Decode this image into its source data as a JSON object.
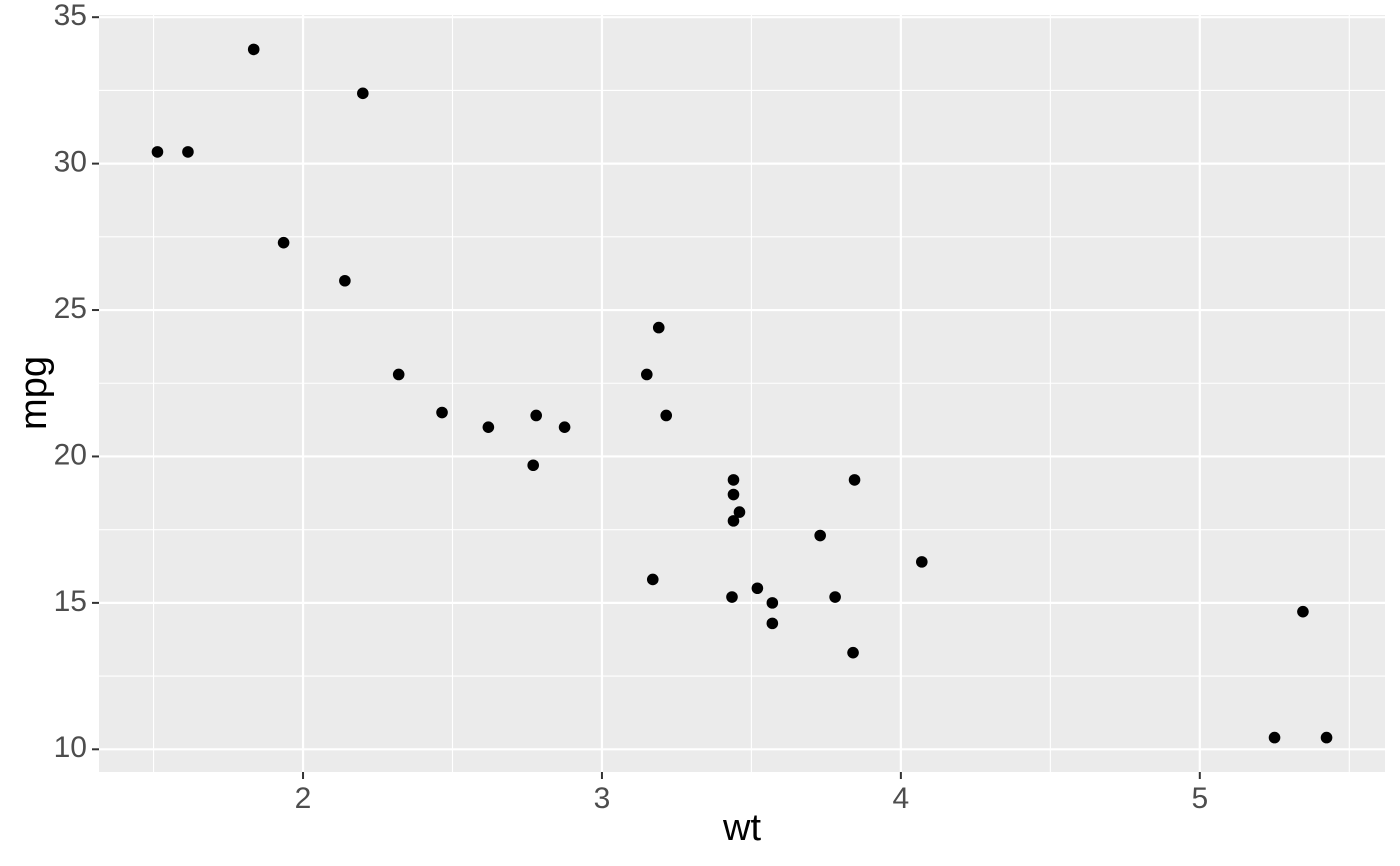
{
  "chart_data": {
    "type": "scatter",
    "x_label": "wt",
    "y_label": "mpg",
    "series": [
      {
        "color": "#000000",
        "x": [
          2.62,
          2.875,
          2.32,
          3.215,
          3.44,
          3.46,
          3.57,
          3.19,
          3.15,
          3.44,
          3.44,
          4.07,
          3.73,
          3.78,
          5.25,
          5.424,
          5.345,
          2.2,
          1.615,
          1.835,
          2.465,
          3.52,
          3.435,
          3.84,
          3.845,
          1.935,
          2.14,
          1.513,
          3.17,
          2.77,
          3.57,
          2.78
        ],
        "values": [
          21.0,
          21.0,
          22.8,
          21.4,
          18.7,
          18.1,
          14.3,
          24.4,
          22.8,
          19.2,
          17.8,
          16.4,
          17.3,
          15.2,
          10.4,
          10.4,
          14.7,
          32.4,
          30.4,
          33.9,
          21.5,
          15.5,
          15.2,
          13.3,
          19.2,
          27.3,
          26.0,
          30.4,
          15.8,
          19.7,
          15.0,
          21.4
        ]
      }
    ],
    "xlim": [
      1.31745,
      5.61955
    ],
    "ylim": [
      9.225,
      35.075
    ],
    "xticks": [
      2,
      3,
      4,
      5
    ],
    "yticks": [
      10,
      15,
      20,
      25,
      30,
      35
    ],
    "x_minor_breaks": [
      1.5,
      2.5,
      3.5,
      4.5,
      5.5
    ],
    "y_minor_breaks": [
      12.5,
      17.5,
      22.5,
      27.5,
      32.5
    ],
    "grid": true,
    "panel_color": "#ebebeb"
  }
}
